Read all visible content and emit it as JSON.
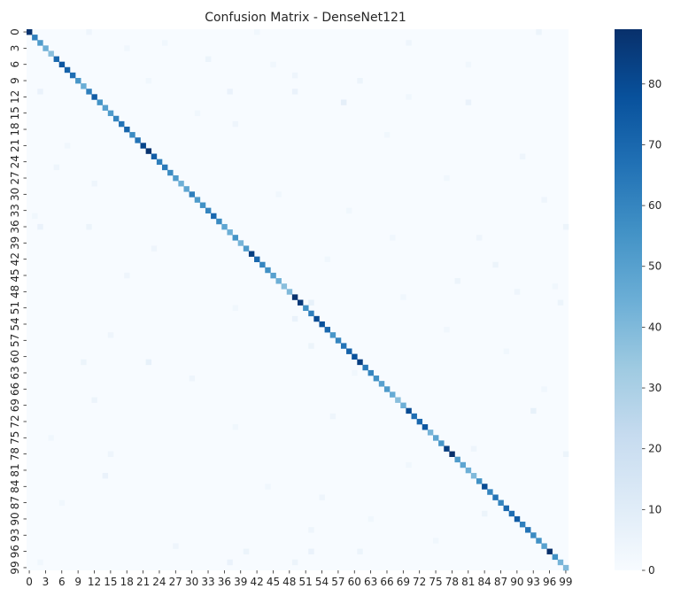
{
  "chart_data": {
    "type": "heatmap",
    "title": "Confusion Matrix - DenseNet121",
    "xlabel": "",
    "ylabel": "",
    "num_classes": 100,
    "x_tick_labels": [
      "0",
      "3",
      "6",
      "9",
      "12",
      "15",
      "18",
      "21",
      "24",
      "27",
      "30",
      "33",
      "36",
      "39",
      "42",
      "45",
      "48",
      "51",
      "54",
      "57",
      "60",
      "63",
      "66",
      "69",
      "72",
      "75",
      "78",
      "81",
      "84",
      "87",
      "90",
      "93",
      "96",
      "99"
    ],
    "y_tick_labels": [
      "0",
      "3",
      "6",
      "9",
      "12",
      "15",
      "18",
      "21",
      "24",
      "27",
      "30",
      "33",
      "36",
      "39",
      "42",
      "45",
      "48",
      "51",
      "54",
      "57",
      "60",
      "63",
      "66",
      "69",
      "72",
      "75",
      "78",
      "81",
      "84",
      "87",
      "90",
      "93",
      "96",
      "99"
    ],
    "tick_step": 3,
    "colormap": "Blues",
    "color_range": [
      0,
      89
    ],
    "colorbar_ticks": [
      0,
      10,
      20,
      30,
      40,
      50,
      60,
      70,
      80
    ],
    "colorbar_tick_labels": [
      "0",
      "10",
      "20",
      "30",
      "40",
      "50",
      "60",
      "70",
      "80"
    ],
    "diagonal_values": [
      88,
      62,
      52,
      44,
      38,
      70,
      76,
      72,
      68,
      54,
      45,
      62,
      74,
      55,
      50,
      52,
      60,
      66,
      71,
      58,
      66,
      82,
      88,
      74,
      62,
      64,
      58,
      52,
      44,
      48,
      62,
      52,
      56,
      60,
      70,
      58,
      48,
      44,
      55,
      42,
      52,
      84,
      70,
      60,
      56,
      50,
      44,
      38,
      40,
      88,
      86,
      56,
      62,
      80,
      78,
      70,
      54,
      60,
      66,
      72,
      78,
      84,
      64,
      60,
      56,
      50,
      52,
      46,
      38,
      44,
      80,
      68,
      70,
      76,
      42,
      48,
      54,
      84,
      90,
      52,
      48,
      44,
      40,
      56,
      80,
      60,
      66,
      60,
      70,
      68,
      74,
      62,
      66,
      58,
      56,
      50,
      90,
      56,
      42,
      40
    ],
    "off_diagonal": [
      {
        "row": 0,
        "col": 11,
        "value": 4
      },
      {
        "row": 0,
        "col": 42,
        "value": 3
      },
      {
        "row": 0,
        "col": 94,
        "value": 5
      },
      {
        "row": 2,
        "col": 25,
        "value": 3
      },
      {
        "row": 2,
        "col": 70,
        "value": 4
      },
      {
        "row": 3,
        "col": 18,
        "value": 3
      },
      {
        "row": 5,
        "col": 33,
        "value": 5
      },
      {
        "row": 6,
        "col": 45,
        "value": 3
      },
      {
        "row": 6,
        "col": 81,
        "value": 3
      },
      {
        "row": 8,
        "col": 49,
        "value": 4
      },
      {
        "row": 9,
        "col": 22,
        "value": 3
      },
      {
        "row": 9,
        "col": 61,
        "value": 5
      },
      {
        "row": 11,
        "col": 2,
        "value": 6
      },
      {
        "row": 11,
        "col": 37,
        "value": 6
      },
      {
        "row": 11,
        "col": 49,
        "value": 6
      },
      {
        "row": 12,
        "col": 70,
        "value": 3
      },
      {
        "row": 13,
        "col": 58,
        "value": 8
      },
      {
        "row": 13,
        "col": 81,
        "value": 6
      },
      {
        "row": 15,
        "col": 31,
        "value": 3
      },
      {
        "row": 17,
        "col": 38,
        "value": 4
      },
      {
        "row": 19,
        "col": 66,
        "value": 3
      },
      {
        "row": 21,
        "col": 7,
        "value": 3
      },
      {
        "row": 23,
        "col": 91,
        "value": 4
      },
      {
        "row": 25,
        "col": 5,
        "value": 4
      },
      {
        "row": 27,
        "col": 77,
        "value": 3
      },
      {
        "row": 28,
        "col": 12,
        "value": 4
      },
      {
        "row": 30,
        "col": 46,
        "value": 3
      },
      {
        "row": 31,
        "col": 95,
        "value": 4
      },
      {
        "row": 33,
        "col": 59,
        "value": 3
      },
      {
        "row": 34,
        "col": 1,
        "value": 3
      },
      {
        "row": 36,
        "col": 2,
        "value": 6
      },
      {
        "row": 36,
        "col": 11,
        "value": 5
      },
      {
        "row": 36,
        "col": 99,
        "value": 5
      },
      {
        "row": 38,
        "col": 67,
        "value": 3
      },
      {
        "row": 38,
        "col": 83,
        "value": 4
      },
      {
        "row": 40,
        "col": 23,
        "value": 4
      },
      {
        "row": 42,
        "col": 55,
        "value": 3
      },
      {
        "row": 43,
        "col": 86,
        "value": 5
      },
      {
        "row": 45,
        "col": 18,
        "value": 4
      },
      {
        "row": 46,
        "col": 79,
        "value": 5
      },
      {
        "row": 47,
        "col": 97,
        "value": 3
      },
      {
        "row": 48,
        "col": 90,
        "value": 4
      },
      {
        "row": 49,
        "col": 69,
        "value": 3
      },
      {
        "row": 50,
        "col": 52,
        "value": 7
      },
      {
        "row": 50,
        "col": 98,
        "value": 5
      },
      {
        "row": 51,
        "col": 38,
        "value": 3
      },
      {
        "row": 53,
        "col": 49,
        "value": 6
      },
      {
        "row": 55,
        "col": 77,
        "value": 3
      },
      {
        "row": 56,
        "col": 15,
        "value": 4
      },
      {
        "row": 58,
        "col": 52,
        "value": 5
      },
      {
        "row": 59,
        "col": 88,
        "value": 3
      },
      {
        "row": 61,
        "col": 10,
        "value": 5
      },
      {
        "row": 61,
        "col": 22,
        "value": 7
      },
      {
        "row": 63,
        "col": 60,
        "value": 3
      },
      {
        "row": 64,
        "col": 30,
        "value": 4
      },
      {
        "row": 66,
        "col": 95,
        "value": 3
      },
      {
        "row": 68,
        "col": 12,
        "value": 5
      },
      {
        "row": 70,
        "col": 93,
        "value": 7
      },
      {
        "row": 71,
        "col": 56,
        "value": 4
      },
      {
        "row": 73,
        "col": 38,
        "value": 3
      },
      {
        "row": 75,
        "col": 4,
        "value": 3
      },
      {
        "row": 77,
        "col": 82,
        "value": 4
      },
      {
        "row": 78,
        "col": 15,
        "value": 4
      },
      {
        "row": 78,
        "col": 99,
        "value": 5
      },
      {
        "row": 80,
        "col": 70,
        "value": 3
      },
      {
        "row": 82,
        "col": 14,
        "value": 6
      },
      {
        "row": 84,
        "col": 44,
        "value": 3
      },
      {
        "row": 86,
        "col": 54,
        "value": 4
      },
      {
        "row": 87,
        "col": 6,
        "value": 3
      },
      {
        "row": 89,
        "col": 84,
        "value": 5
      },
      {
        "row": 90,
        "col": 63,
        "value": 3
      },
      {
        "row": 92,
        "col": 52,
        "value": 4
      },
      {
        "row": 94,
        "col": 75,
        "value": 3
      },
      {
        "row": 95,
        "col": 27,
        "value": 4
      },
      {
        "row": 96,
        "col": 40,
        "value": 5
      },
      {
        "row": 96,
        "col": 52,
        "value": 6
      },
      {
        "row": 96,
        "col": 61,
        "value": 5
      },
      {
        "row": 98,
        "col": 37,
        "value": 6
      },
      {
        "row": 98,
        "col": 49,
        "value": 5
      },
      {
        "row": 98,
        "col": 2,
        "value": 3
      }
    ]
  }
}
